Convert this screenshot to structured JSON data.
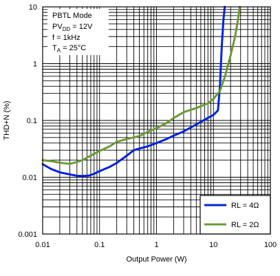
{
  "chart_data": {
    "type": "line",
    "xlabel": "Output Power (W)",
    "ylabel": "THD+N (%)",
    "xscale": "log",
    "yscale": "log",
    "xlim": [
      0.01,
      100
    ],
    "ylim": [
      0.001,
      10
    ],
    "grid": true,
    "x_ticks": [
      "0.01",
      "0.1",
      "1",
      "10",
      "100"
    ],
    "y_ticks": [
      "0.001",
      "0.01",
      "0.1",
      "1",
      "10"
    ],
    "conditions": {
      "mode": "PBTL Mode",
      "supply_sym": "PV",
      "supply_sub": "DD",
      "supply_val": " = 12V",
      "freq": "f = 1kHz",
      "temp_sym": "T",
      "temp_sub": "A",
      "temp_val": " = 25°C"
    },
    "legend_position": "bottom-right",
    "series": [
      {
        "name": "RL = 4Ω",
        "color": "#0022e0",
        "points": [
          [
            0.01,
            0.017
          ],
          [
            0.014,
            0.014
          ],
          [
            0.02,
            0.0122
          ],
          [
            0.03,
            0.0112
          ],
          [
            0.04,
            0.0106
          ],
          [
            0.05,
            0.0105
          ],
          [
            0.065,
            0.0107
          ],
          [
            0.08,
            0.0115
          ],
          [
            0.1,
            0.0128
          ],
          [
            0.15,
            0.0152
          ],
          [
            0.2,
            0.0178
          ],
          [
            0.3,
            0.024
          ],
          [
            0.4,
            0.03
          ],
          [
            0.5,
            0.032
          ],
          [
            0.7,
            0.035
          ],
          [
            1.0,
            0.04
          ],
          [
            1.5,
            0.047
          ],
          [
            2.0,
            0.054
          ],
          [
            3.0,
            0.064
          ],
          [
            5.0,
            0.085
          ],
          [
            7.0,
            0.103
          ],
          [
            10.0,
            0.125
          ],
          [
            12.0,
            0.15
          ],
          [
            13.0,
            0.4
          ],
          [
            14.0,
            2.0
          ],
          [
            15.0,
            6.0
          ],
          [
            15.8,
            10.0
          ]
        ]
      },
      {
        "name": "RL = 2Ω",
        "color": "#6b9a34",
        "points": [
          [
            0.01,
            0.02
          ],
          [
            0.015,
            0.019
          ],
          [
            0.02,
            0.018
          ],
          [
            0.03,
            0.0172
          ],
          [
            0.04,
            0.0185
          ],
          [
            0.05,
            0.02
          ],
          [
            0.07,
            0.024
          ],
          [
            0.1,
            0.029
          ],
          [
            0.15,
            0.035
          ],
          [
            0.2,
            0.042
          ],
          [
            0.3,
            0.047
          ],
          [
            0.5,
            0.053
          ],
          [
            0.7,
            0.063
          ],
          [
            1.0,
            0.073
          ],
          [
            1.5,
            0.09
          ],
          [
            2.0,
            0.11
          ],
          [
            3.0,
            0.14
          ],
          [
            5.0,
            0.165
          ],
          [
            8.0,
            0.2
          ],
          [
            10.0,
            0.24
          ],
          [
            13.0,
            0.33
          ],
          [
            16.0,
            0.6
          ],
          [
            20.0,
            1.4
          ],
          [
            24.0,
            3.0
          ],
          [
            27.0,
            6.0
          ],
          [
            29.0,
            10.0
          ]
        ]
      }
    ]
  }
}
